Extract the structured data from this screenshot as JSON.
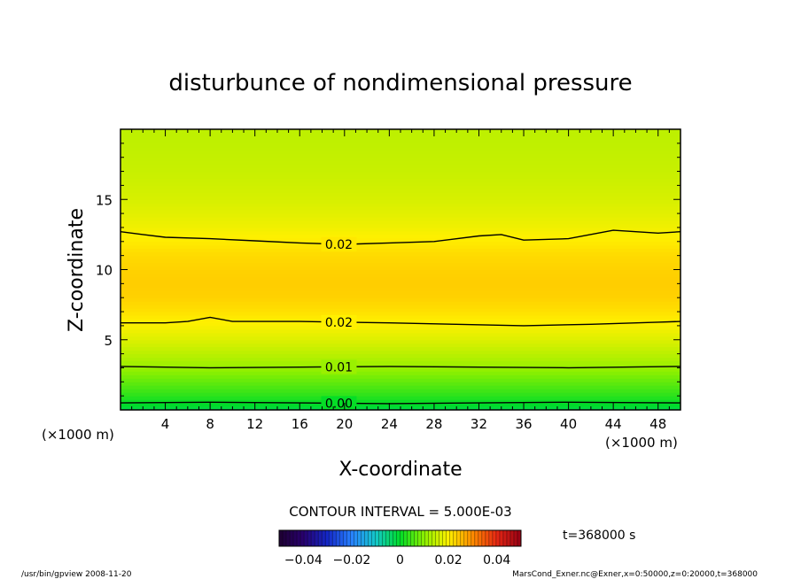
{
  "chart_data": {
    "type": "heatmap",
    "title": "disturbunce of nondimensional pressure",
    "xlabel": "X-coordinate",
    "ylabel": "Z-coordinate",
    "x_unit": "(×1000 m)",
    "y_unit": "(×1000 m)",
    "xlim": [
      0,
      50
    ],
    "ylim": [
      0,
      20
    ],
    "x_ticks": [
      4,
      8,
      12,
      16,
      20,
      24,
      28,
      32,
      36,
      40,
      44,
      48
    ],
    "y_ticks": [
      5,
      10,
      15
    ],
    "contour_interval_label": "CONTOUR INTERVAL = 5.000E-03",
    "time_label": "t=368000  s",
    "colorbar": {
      "range": [
        -0.05,
        0.05
      ],
      "ticks": [
        -0.04,
        -0.02,
        0,
        0.02,
        0.04
      ],
      "tick_labels": [
        "−0.04",
        "−0.02",
        "0",
        "0.02",
        "0.04"
      ]
    },
    "profile_z": [
      0,
      1,
      2,
      3,
      4,
      5,
      6,
      7,
      8,
      9,
      10,
      11,
      12,
      13,
      14,
      15,
      16,
      17,
      18,
      19,
      20
    ],
    "profile_values": [
      -0.002,
      0.003,
      0.007,
      0.011,
      0.014,
      0.017,
      0.0195,
      0.0215,
      0.023,
      0.0235,
      0.023,
      0.0222,
      0.0205,
      0.0188,
      0.0175,
      0.0165,
      0.0158,
      0.0152,
      0.0148,
      0.0145,
      0.0143
    ],
    "contours": [
      {
        "label": "0.02",
        "label_x": 19.5,
        "points": [
          [
            0,
            12.7
          ],
          [
            2,
            12.5
          ],
          [
            4,
            12.3
          ],
          [
            8,
            12.2
          ],
          [
            12,
            12.05
          ],
          [
            16,
            11.9
          ],
          [
            20,
            11.8
          ],
          [
            24,
            11.9
          ],
          [
            28,
            12.0
          ],
          [
            32,
            12.4
          ],
          [
            34,
            12.5
          ],
          [
            36,
            12.1
          ],
          [
            40,
            12.2
          ],
          [
            44,
            12.8
          ],
          [
            48,
            12.6
          ],
          [
            50,
            12.7
          ]
        ]
      },
      {
        "label": "0.02",
        "label_x": 19.5,
        "points": [
          [
            0,
            6.2
          ],
          [
            4,
            6.2
          ],
          [
            6,
            6.3
          ],
          [
            8,
            6.6
          ],
          [
            10,
            6.3
          ],
          [
            16,
            6.3
          ],
          [
            20,
            6.25
          ],
          [
            24,
            6.2
          ],
          [
            30,
            6.1
          ],
          [
            36,
            6.0
          ],
          [
            42,
            6.1
          ],
          [
            48,
            6.25
          ],
          [
            50,
            6.3
          ]
        ]
      },
      {
        "label": "0.01",
        "label_x": 19.5,
        "points": [
          [
            0,
            3.1
          ],
          [
            8,
            3.0
          ],
          [
            16,
            3.05
          ],
          [
            24,
            3.1
          ],
          [
            32,
            3.05
          ],
          [
            40,
            3.0
          ],
          [
            50,
            3.1
          ]
        ]
      },
      {
        "label": "0.00",
        "label_x": 19.5,
        "points": [
          [
            0,
            0.5
          ],
          [
            8,
            0.55
          ],
          [
            16,
            0.5
          ],
          [
            24,
            0.45
          ],
          [
            32,
            0.5
          ],
          [
            40,
            0.55
          ],
          [
            50,
            0.5
          ]
        ]
      }
    ]
  },
  "footer": {
    "left": "/usr/bin/gpview   2008-11-20",
    "right": "MarsCond_Exner.nc@Exner,x=0:50000,z=0:20000,t=368000"
  }
}
